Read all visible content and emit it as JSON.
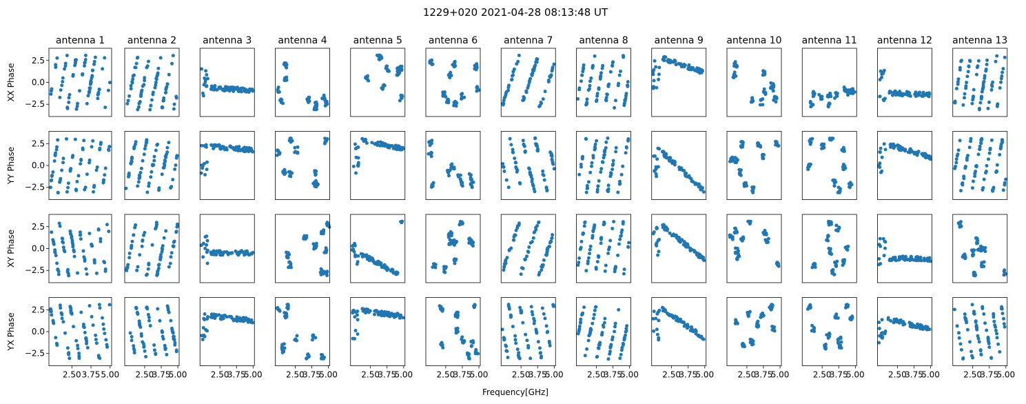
{
  "figure": {
    "title": "1229+020 2021-04-28 08:13:48 UT",
    "xlabel": "Frequency[GHz]"
  },
  "chart_data": {
    "type": "scatter",
    "rows": [
      "XX Phase",
      "YY Phase",
      "XY Phase",
      "YX Phase"
    ],
    "columns": [
      "antenna 1",
      "antenna 2",
      "antenna 3",
      "antenna 4",
      "antenna 5",
      "antenna 6",
      "antenna 7",
      "antenna 8",
      "antenna 9",
      "antenna 10",
      "antenna 11",
      "antenna 12",
      "antenna 13"
    ],
    "xlim": [
      1.0,
      5.1
    ],
    "ylim": [
      -3.9,
      3.9
    ],
    "xticks": [
      2.5,
      3.75,
      5.0
    ],
    "xtick_labels": [
      "2.50",
      "3.75",
      "5.00"
    ],
    "yticks": [
      -2.5,
      0.0,
      2.5
    ],
    "ytick_labels": [
      "−2.5",
      "0.0",
      "2.5"
    ],
    "marker_color": "#1f77b4",
    "panel_patterns": [
      [
        "wrap:-1.6:4.6",
        "wrap:-3.2:3.2",
        "flat:-0.6:-0.3",
        "clusters",
        "clusters",
        "clusters",
        "wrap:-2.6:2.0",
        "wrap:-2.0:4.0",
        "flat:2.8:-1.5",
        "clusters",
        "clusters",
        "flat:-1.2:-0.2",
        "wrap:-2.8:4.4"
      ],
      [
        "wrap:-2.4:5.0",
        "wrap:-2.6:3.4",
        "flat:2.2:-0.4",
        "clusters",
        "flat:2.9:-0.9",
        "clusters",
        "wrap:0.4:-3.0",
        "wrap:-2.0:3.6",
        "flat:1.5:-4.0",
        "clusters",
        "clusters",
        "flat:2.4:-1.3",
        "wrap:-0.8:3.6"
      ],
      [
        "wrap:2.6:-4.6",
        "wrap:-2.8:3.6",
        "flat:-0.5:0.0",
        "clusters",
        "flat:-0.6:-2.4",
        "clusters",
        "wrap:-2.6:2.0",
        "wrap:-2.0:4.0",
        "flat:2.6:-3.5",
        "clusters",
        "clusters",
        "flat:-1.1:-0.1",
        "clusters"
      ],
      [
        "wrap:2.8:-4.4",
        "wrap:2.6:-3.6",
        "flat:1.8:-0.5",
        "clusters",
        "flat:2.4:-0.6",
        "clusters",
        "wrap:0.2:-3.4",
        "wrap:-0.4:3.2",
        "flat:2.6:-3.0",
        "clusters",
        "clusters",
        "flat:1.4:-1.0",
        "wrap:2.8:-4.0"
      ]
    ]
  }
}
